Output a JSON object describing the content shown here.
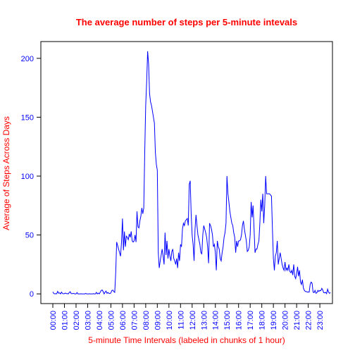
{
  "chart_data": {
    "type": "line",
    "title": "The average number of steps per 5-minute intevals",
    "xlabel": "5-minute Time Intervals (labeled in chunks of 1 hour)",
    "ylabel": "Average of Steps Across Days",
    "color": "#0000ff",
    "ylim": [
      -8.24,
      214.24
    ],
    "yticks": [
      0,
      50,
      100,
      150,
      200
    ],
    "categories": [
      "00:00",
      null,
      null,
      null,
      null,
      null,
      null,
      null,
      null,
      null,
      null,
      null,
      "01:00",
      null,
      null,
      null,
      null,
      null,
      null,
      null,
      null,
      null,
      null,
      null,
      "02:00",
      null,
      null,
      null,
      null,
      null,
      null,
      null,
      null,
      null,
      null,
      null,
      "03:00",
      null,
      null,
      null,
      null,
      null,
      null,
      null,
      null,
      null,
      null,
      null,
      "04:00",
      null,
      null,
      null,
      null,
      null,
      null,
      null,
      null,
      null,
      null,
      null,
      "05:00",
      null,
      null,
      null,
      null,
      null,
      null,
      null,
      null,
      null,
      null,
      null,
      "06:00",
      null,
      null,
      null,
      null,
      null,
      null,
      null,
      null,
      null,
      null,
      null,
      "07:00",
      null,
      null,
      null,
      null,
      null,
      null,
      null,
      null,
      null,
      null,
      null,
      "08:00",
      null,
      null,
      null,
      null,
      null,
      null,
      null,
      null,
      null,
      null,
      null,
      "09:00",
      null,
      null,
      null,
      null,
      null,
      null,
      null,
      null,
      null,
      null,
      null,
      "10:00",
      null,
      null,
      null,
      null,
      null,
      null,
      null,
      null,
      null,
      null,
      null,
      "11:00",
      null,
      null,
      null,
      null,
      null,
      null,
      null,
      null,
      null,
      null,
      null,
      "12:00",
      null,
      null,
      null,
      null,
      null,
      null,
      null,
      null,
      null,
      null,
      null,
      "13:00",
      null,
      null,
      null,
      null,
      null,
      null,
      null,
      null,
      null,
      null,
      null,
      "14:00",
      null,
      null,
      null,
      null,
      null,
      null,
      null,
      null,
      null,
      null,
      null,
      "15:00",
      null,
      null,
      null,
      null,
      null,
      null,
      null,
      null,
      null,
      null,
      null,
      "16:00",
      null,
      null,
      null,
      null,
      null,
      null,
      null,
      null,
      null,
      null,
      null,
      "17:00",
      null,
      null,
      null,
      null,
      null,
      null,
      null,
      null,
      null,
      null,
      null,
      "18:00",
      null,
      null,
      null,
      null,
      null,
      null,
      null,
      null,
      null,
      null,
      null,
      "19:00",
      null,
      null,
      null,
      null,
      null,
      null,
      null,
      null,
      null,
      null,
      null,
      "20:00",
      null,
      null,
      null,
      null,
      null,
      null,
      null,
      null,
      null,
      null,
      null,
      "21:00",
      null,
      null,
      null,
      null,
      null,
      null,
      null,
      null,
      null,
      null,
      null,
      "22:00",
      null,
      null,
      null,
      null,
      null,
      null,
      null,
      null,
      null,
      null,
      null,
      "23:00",
      null,
      null,
      null,
      null,
      null,
      null,
      null,
      null,
      null,
      null,
      null
    ],
    "values": [
      1.7,
      0.3,
      0.1,
      0.2,
      0.1,
      2.1,
      0.5,
      0.9,
      0,
      1.5,
      0.3,
      0.1,
      0.3,
      0.7,
      0.2,
      0.3,
      0,
      1.1,
      1.8,
      0.2,
      0.2,
      0.4,
      0.3,
      0,
      0,
      1.1,
      0,
      0,
      0,
      0.1,
      0,
      0,
      0,
      0,
      0.4,
      0,
      0,
      0,
      0.1,
      0,
      0,
      0,
      0.2,
      0,
      0,
      1.3,
      0,
      0.7,
      0,
      1.5,
      2.9,
      3.3,
      2,
      0,
      1.4,
      2.4,
      0.5,
      1.2,
      0.4,
      0.3,
      0.8,
      2.9,
      3.2,
      2,
      1.3,
      18,
      44,
      41,
      38,
      35,
      32,
      44,
      64,
      37,
      53,
      40,
      49,
      48,
      46,
      51,
      48,
      53,
      45,
      44,
      45,
      50,
      44,
      70,
      57,
      56,
      62,
      66,
      73,
      68,
      73,
      120,
      160,
      180,
      206,
      195,
      170,
      163,
      160,
      155,
      150,
      145,
      120,
      110,
      105,
      35,
      22,
      28,
      33,
      38,
      32,
      25,
      52,
      33,
      45,
      30,
      38,
      32,
      28,
      36,
      38,
      30,
      28,
      25,
      30,
      22,
      35,
      28,
      42,
      40,
      55,
      60,
      58,
      62,
      63,
      64,
      58,
      93,
      96,
      68,
      50,
      42,
      28,
      55,
      67,
      58,
      50,
      46,
      42,
      35,
      34,
      50,
      58,
      55,
      52,
      48,
      40,
      26,
      60,
      58,
      55,
      50,
      40,
      42,
      35,
      20,
      45,
      40,
      38,
      30,
      28,
      35,
      40,
      48,
      52,
      60,
      100,
      85,
      78,
      70,
      65,
      60,
      58,
      52,
      48,
      35,
      45,
      40,
      45,
      45,
      46,
      50,
      58,
      62,
      55,
      50,
      45,
      36,
      37,
      40,
      50,
      78,
      65,
      75,
      55,
      35,
      38,
      38,
      42,
      45,
      60,
      80,
      70,
      85,
      60,
      75,
      100,
      85,
      85,
      85,
      85,
      84,
      83,
      55,
      30,
      20,
      32,
      35,
      45,
      25,
      30,
      35,
      30,
      25,
      22,
      20,
      27,
      20,
      22,
      20,
      25,
      19,
      18,
      20,
      16,
      25,
      15,
      13,
      17,
      23,
      15,
      20,
      10,
      8,
      12,
      5,
      3,
      2,
      2,
      1.5,
      1.6,
      1.5,
      8,
      10,
      9,
      1.5,
      1,
      3,
      0.5,
      1,
      3,
      2,
      3,
      2.6,
      4.7,
      3.3,
      1,
      0.9,
      1.3,
      0.2,
      4,
      1.5,
      0.5,
      1.1
    ]
  }
}
